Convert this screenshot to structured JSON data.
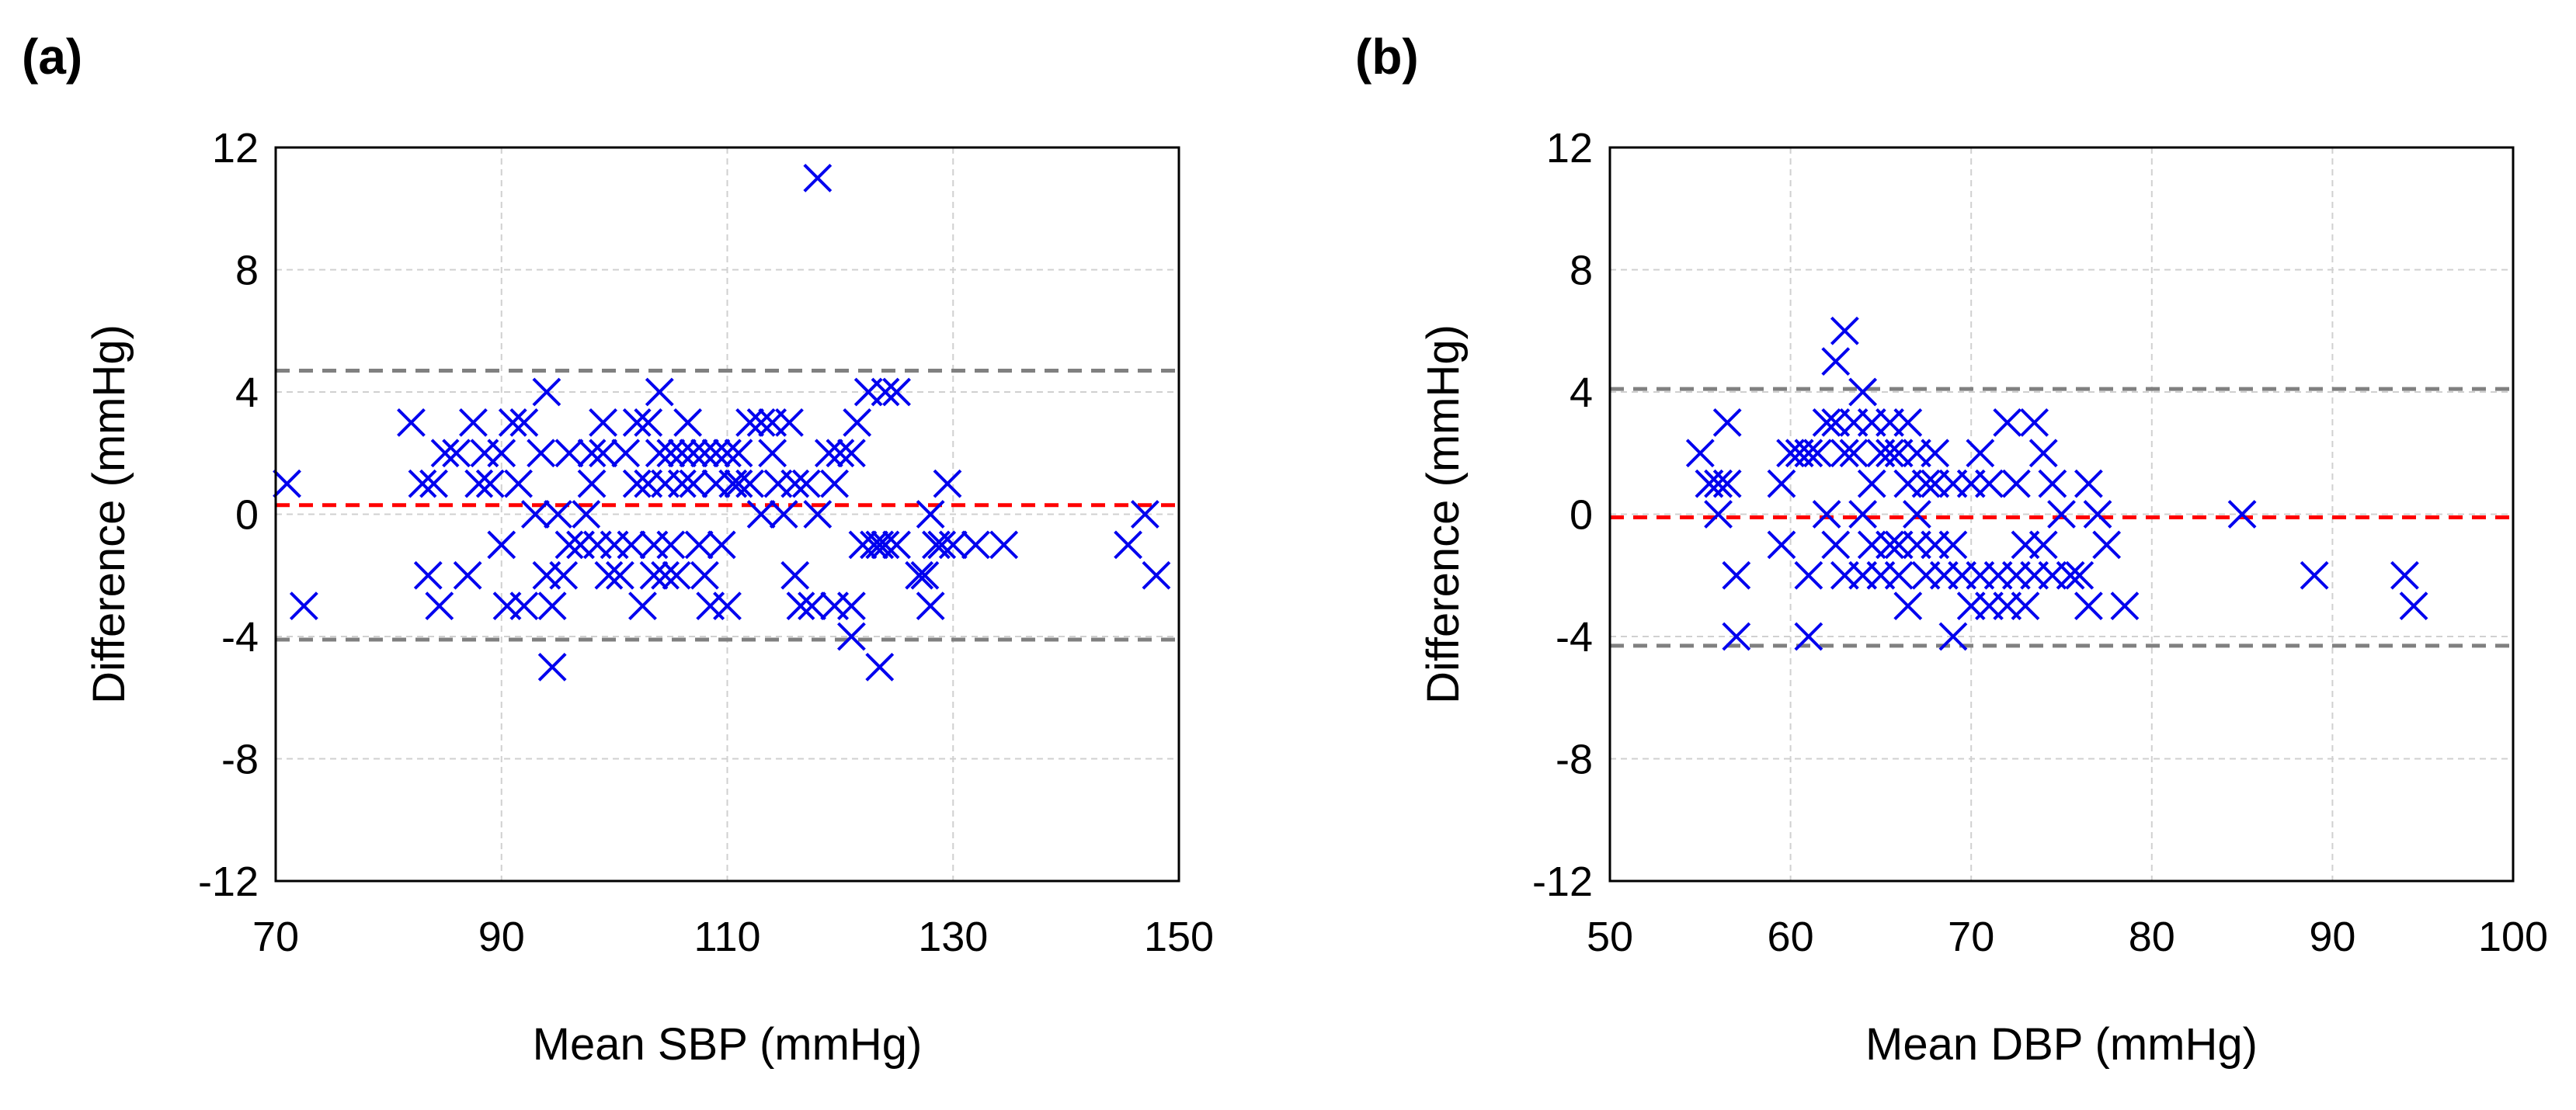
{
  "chart_data": [
    {
      "type": "scatter",
      "panel_label": "(a)",
      "title": "",
      "xlabel": "Mean SBP (mmHg)",
      "ylabel": "Difference (mmHg)",
      "xlim": [
        70,
        150
      ],
      "ylim": [
        -12,
        12
      ],
      "x_ticks": [
        70,
        90,
        110,
        130,
        150
      ],
      "y_ticks": [
        12,
        8,
        4,
        0,
        -4,
        -8,
        -12
      ],
      "grid": true,
      "marker": "x",
      "marker_color": "#0000ee",
      "reference_lines": [
        {
          "name": "upper limit of agreement",
          "y": 4.7,
          "color": "#808080"
        },
        {
          "name": "mean difference",
          "y": 0.3,
          "color": "#ff0000"
        },
        {
          "name": "lower limit of agreement",
          "y": -4.1,
          "color": "#808080"
        }
      ],
      "points": [
        [
          71,
          1
        ],
        [
          72.5,
          -3
        ],
        [
          82,
          3
        ],
        [
          83,
          1
        ],
        [
          83.5,
          -2
        ],
        [
          84,
          1
        ],
        [
          84.5,
          -3
        ],
        [
          85,
          2
        ],
        [
          86,
          2
        ],
        [
          87,
          -2
        ],
        [
          87.5,
          3
        ],
        [
          88,
          1
        ],
        [
          88.5,
          2
        ],
        [
          89,
          1
        ],
        [
          90,
          2
        ],
        [
          90,
          -1
        ],
        [
          90.5,
          -3
        ],
        [
          91,
          3
        ],
        [
          91.5,
          1
        ],
        [
          92,
          3
        ],
        [
          92,
          -3
        ],
        [
          93,
          0
        ],
        [
          93.5,
          2
        ],
        [
          94,
          4
        ],
        [
          94,
          -2
        ],
        [
          94.5,
          -3
        ],
        [
          94.5,
          -5
        ],
        [
          95,
          0
        ],
        [
          95.5,
          -2
        ],
        [
          96,
          2
        ],
        [
          96,
          -1
        ],
        [
          97,
          -1
        ],
        [
          97.5,
          0
        ],
        [
          98,
          2
        ],
        [
          98,
          1
        ],
        [
          98.5,
          -1
        ],
        [
          99,
          3
        ],
        [
          99,
          2
        ],
        [
          99.5,
          -2
        ],
        [
          100,
          -1
        ],
        [
          100.5,
          -2
        ],
        [
          101,
          2
        ],
        [
          101.5,
          -1
        ],
        [
          102,
          3
        ],
        [
          102,
          1
        ],
        [
          102.5,
          -3
        ],
        [
          103,
          3
        ],
        [
          103,
          1
        ],
        [
          103.5,
          -1
        ],
        [
          103.5,
          -2
        ],
        [
          104,
          4
        ],
        [
          104,
          2
        ],
        [
          104.5,
          1
        ],
        [
          104.5,
          -2
        ],
        [
          105,
          2
        ],
        [
          105,
          -1
        ],
        [
          105.5,
          -2
        ],
        [
          106,
          2
        ],
        [
          106,
          1
        ],
        [
          106.5,
          3
        ],
        [
          107,
          2
        ],
        [
          107,
          1
        ],
        [
          107.5,
          -1
        ],
        [
          108,
          2
        ],
        [
          108,
          -2
        ],
        [
          108.5,
          -3
        ],
        [
          109,
          2
        ],
        [
          109,
          1
        ],
        [
          109.5,
          -1
        ],
        [
          110,
          2
        ],
        [
          110,
          -3
        ],
        [
          110.5,
          1
        ],
        [
          111,
          2
        ],
        [
          111,
          1
        ],
        [
          112,
          3
        ],
        [
          112,
          1
        ],
        [
          113,
          3
        ],
        [
          113,
          0
        ],
        [
          114,
          3
        ],
        [
          114,
          2
        ],
        [
          114.5,
          1
        ],
        [
          115,
          0
        ],
        [
          115.5,
          3
        ],
        [
          116,
          1
        ],
        [
          116,
          -2
        ],
        [
          116.5,
          -3
        ],
        [
          117,
          1
        ],
        [
          117.5,
          -3
        ],
        [
          118,
          11
        ],
        [
          118,
          0
        ],
        [
          119,
          2
        ],
        [
          119.5,
          1
        ],
        [
          119.5,
          -3
        ],
        [
          120,
          2
        ],
        [
          121,
          2
        ],
        [
          121,
          -3
        ],
        [
          121,
          -4
        ],
        [
          121.5,
          3
        ],
        [
          122,
          -1
        ],
        [
          122.5,
          4
        ],
        [
          123,
          -1
        ],
        [
          123.5,
          -1
        ],
        [
          123.5,
          -5
        ],
        [
          124,
          4
        ],
        [
          124,
          -1
        ],
        [
          125,
          4
        ],
        [
          125,
          -1
        ],
        [
          127,
          -2
        ],
        [
          127.5,
          -2
        ],
        [
          128,
          -3
        ],
        [
          128,
          0
        ],
        [
          128.5,
          -1
        ],
        [
          129,
          -1
        ],
        [
          129.5,
          1
        ],
        [
          130,
          -1
        ],
        [
          132,
          -1
        ],
        [
          134.5,
          -1
        ],
        [
          145.5,
          -1
        ],
        [
          147,
          0
        ],
        [
          148,
          -2
        ]
      ]
    },
    {
      "type": "scatter",
      "panel_label": "(b)",
      "title": "",
      "xlabel": "Mean DBP (mmHg)",
      "ylabel": "Difference (mmHg)",
      "xlim": [
        50,
        100
      ],
      "ylim": [
        -12,
        12
      ],
      "x_ticks": [
        50,
        60,
        70,
        80,
        90,
        100
      ],
      "y_ticks": [
        12,
        8,
        4,
        0,
        -4,
        -8,
        -12
      ],
      "grid": true,
      "marker": "x",
      "marker_color": "#0000ee",
      "reference_lines": [
        {
          "name": "upper limit of agreement",
          "y": 4.1,
          "color": "#808080"
        },
        {
          "name": "mean difference",
          "y": -0.1,
          "color": "#ff0000"
        },
        {
          "name": "lower limit of agreement",
          "y": -4.3,
          "color": "#808080"
        }
      ],
      "points": [
        [
          55,
          2
        ],
        [
          55.5,
          1
        ],
        [
          56,
          0
        ],
        [
          56,
          1
        ],
        [
          56.5,
          3
        ],
        [
          56.5,
          1
        ],
        [
          57,
          -2
        ],
        [
          57,
          -4
        ],
        [
          59.5,
          1
        ],
        [
          59.5,
          -1
        ],
        [
          60,
          2
        ],
        [
          60.5,
          2
        ],
        [
          61,
          2
        ],
        [
          61,
          -2
        ],
        [
          61,
          -4
        ],
        [
          61.5,
          2
        ],
        [
          62,
          3
        ],
        [
          62,
          0
        ],
        [
          62.5,
          5
        ],
        [
          62.5,
          3
        ],
        [
          62.5,
          -1
        ],
        [
          63,
          6
        ],
        [
          63,
          2
        ],
        [
          63,
          -2
        ],
        [
          63.5,
          3
        ],
        [
          63.5,
          2
        ],
        [
          64,
          4
        ],
        [
          64,
          0
        ],
        [
          64,
          -2
        ],
        [
          64.5,
          3
        ],
        [
          64.5,
          1
        ],
        [
          64.5,
          -1
        ],
        [
          65,
          2
        ],
        [
          65,
          -2
        ],
        [
          65.5,
          3
        ],
        [
          65.5,
          2
        ],
        [
          65.5,
          -1
        ],
        [
          66,
          2
        ],
        [
          66,
          -1
        ],
        [
          66,
          -2
        ],
        [
          66.5,
          3
        ],
        [
          66.5,
          1
        ],
        [
          66.5,
          -3
        ],
        [
          67,
          2
        ],
        [
          67,
          0
        ],
        [
          67,
          -1
        ],
        [
          67.5,
          1
        ],
        [
          67.5,
          -2
        ],
        [
          68,
          2
        ],
        [
          68,
          1
        ],
        [
          68,
          -1
        ],
        [
          68.5,
          -2
        ],
        [
          69,
          1
        ],
        [
          69,
          -1
        ],
        [
          69,
          -4
        ],
        [
          69.5,
          -2
        ],
        [
          70,
          1
        ],
        [
          70,
          -3
        ],
        [
          70.5,
          2
        ],
        [
          70.5,
          -2
        ],
        [
          71,
          1
        ],
        [
          71,
          -3
        ],
        [
          71.5,
          -2
        ],
        [
          72,
          3
        ],
        [
          72,
          -3
        ],
        [
          72.5,
          1
        ],
        [
          72.5,
          -2
        ],
        [
          73,
          -1
        ],
        [
          73,
          -3
        ],
        [
          73.5,
          3
        ],
        [
          73.5,
          -2
        ],
        [
          74,
          2
        ],
        [
          74,
          -1
        ],
        [
          74.5,
          1
        ],
        [
          74.5,
          -2
        ],
        [
          75,
          0
        ],
        [
          75.5,
          -2
        ],
        [
          76,
          -2
        ],
        [
          76.5,
          1
        ],
        [
          76.5,
          -3
        ],
        [
          77,
          0
        ],
        [
          77.5,
          -1
        ],
        [
          78.5,
          -3
        ],
        [
          85,
          0
        ],
        [
          89,
          -2
        ],
        [
          94,
          -2
        ],
        [
          94.5,
          -3
        ]
      ]
    }
  ]
}
